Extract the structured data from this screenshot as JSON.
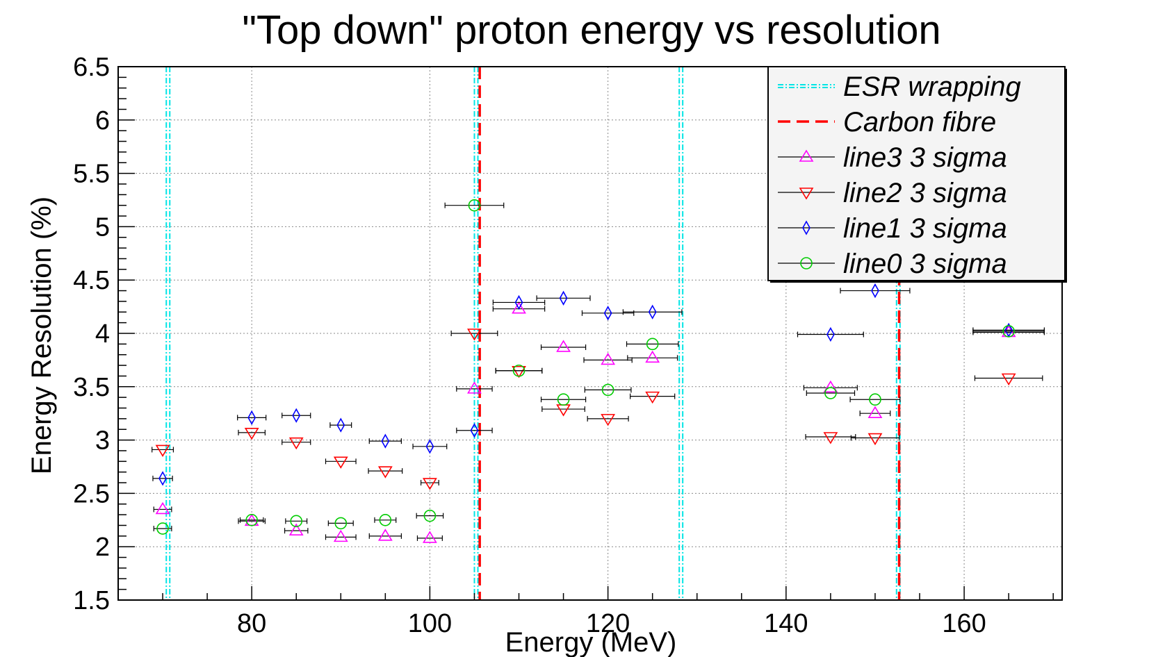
{
  "chart_data": {
    "type": "scatter",
    "title": "\"Top down\" proton energy vs resolution",
    "xlabel": "Energy (MeV)",
    "ylabel": "Energy Resolution (%)",
    "xlim": [
      65,
      171
    ],
    "ylim": [
      1.5,
      6.5
    ],
    "x_ticks": [
      80,
      100,
      120,
      140,
      160
    ],
    "y_ticks": [
      1.5,
      2,
      2.5,
      3,
      3.5,
      4,
      4.5,
      5,
      5.5,
      6,
      6.5
    ],
    "y_tick_labels": [
      "1.5",
      "2",
      "2.5",
      "3",
      "3.5",
      "4",
      "4.5",
      "5",
      "5.5",
      "6",
      "6.5"
    ],
    "grid": true,
    "legend_position": "top-right",
    "reference_lines": [
      {
        "name": "ESR wrapping",
        "color": "#00e5e5",
        "style": "dash-dot",
        "x": [
          70.6,
          105.2,
          128.2,
          152.6
        ]
      },
      {
        "name": "Carbon fibre",
        "color": "#ff0000",
        "style": "dashed",
        "x": [
          105.6,
          152.7
        ]
      }
    ],
    "series": [
      {
        "name": "line3 3 sigma",
        "color": "#ff00ff",
        "marker": "triangle-up",
        "x": [
          70,
          80,
          85,
          90,
          95,
          100,
          105,
          110,
          115,
          120,
          125,
          145,
          150,
          165
        ],
        "y": [
          2.35,
          2.24,
          2.15,
          2.09,
          2.1,
          2.08,
          3.48,
          4.23,
          3.87,
          3.75,
          3.77,
          3.49,
          3.25,
          4.01
        ],
        "xerr": [
          1.0,
          1.5,
          1.3,
          1.7,
          1.8,
          1.4,
          2.0,
          2.9,
          2.5,
          2.7,
          2.8,
          3.0,
          1.7,
          4.0
        ]
      },
      {
        "name": "line2 3 sigma",
        "color": "#ff0000",
        "marker": "triangle-down",
        "x": [
          70,
          80,
          85,
          90,
          95,
          100,
          105,
          110,
          115,
          120,
          125,
          145,
          150,
          165
        ],
        "y": [
          2.91,
          3.07,
          2.98,
          2.8,
          2.71,
          2.6,
          4.0,
          3.65,
          3.29,
          3.2,
          3.41,
          3.03,
          3.02,
          3.58
        ],
        "xerr": [
          1.2,
          1.5,
          1.6,
          1.7,
          1.9,
          1.0,
          2.6,
          2.6,
          2.4,
          2.3,
          2.5,
          2.8,
          2.7,
          3.8
        ]
      },
      {
        "name": "line1 3 sigma",
        "color": "#0000ff",
        "marker": "diamond",
        "x": [
          70,
          80,
          85,
          90,
          95,
          100,
          105,
          110,
          115,
          120,
          125,
          145,
          150,
          165
        ],
        "y": [
          2.64,
          3.21,
          3.23,
          3.14,
          2.99,
          2.94,
          3.09,
          4.29,
          4.33,
          4.19,
          4.2,
          3.99,
          4.4,
          4.03
        ],
        "xerr": [
          1.1,
          1.6,
          1.6,
          1.2,
          1.8,
          1.9,
          2.0,
          2.9,
          3.0,
          2.9,
          3.3,
          3.7,
          3.9,
          4.0
        ]
      },
      {
        "name": "line0 3 sigma",
        "color": "#00cc00",
        "marker": "circle",
        "x": [
          70,
          80,
          85,
          90,
          95,
          100,
          105,
          110,
          115,
          120,
          125,
          145,
          150,
          165
        ],
        "y": [
          2.17,
          2.25,
          2.24,
          2.22,
          2.25,
          2.29,
          5.2,
          3.65,
          3.38,
          3.47,
          3.9,
          3.44,
          3.38,
          4.02
        ],
        "xerr": [
          1.0,
          1.3,
          1.2,
          1.4,
          1.2,
          1.5,
          3.3,
          2.6,
          2.5,
          2.6,
          2.9,
          2.7,
          2.8,
          4.0
        ]
      }
    ]
  }
}
